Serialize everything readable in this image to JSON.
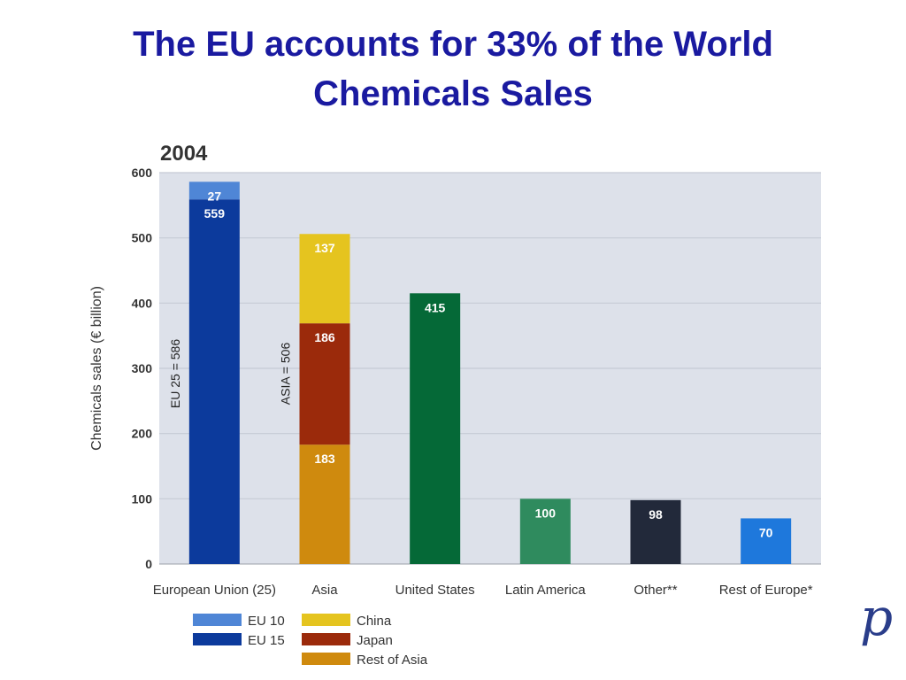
{
  "slide": {
    "title_line1": "The EU accounts for 33% of the World",
    "title_line2": "Chemicals Sales",
    "logo_glyph": "p"
  },
  "colors": {
    "title": "#1a1aa0",
    "plot_bg": "#dde1ea",
    "eu10": "#4f86d6",
    "eu15": "#0c3a9c",
    "china": "#e5c41f",
    "japan": "#9b2a0b",
    "rest_of_asia": "#cf8a0e",
    "united_states": "#056937",
    "latin_america": "#2f8b5e",
    "other": "#22293a",
    "rest_of_europe": "#1e78dc"
  },
  "chart_data": {
    "type": "bar",
    "stacked": true,
    "title": "2004",
    "xlabel": "",
    "ylabel": "Chemicals sales (€ billion)",
    "ylim": [
      0,
      600
    ],
    "yticks": [
      0,
      100,
      200,
      300,
      400,
      500,
      600
    ],
    "grid": true,
    "categories": [
      "European Union (25)",
      "Asia",
      "United States",
      "Latin America",
      "Other**",
      "Rest of Europe*"
    ],
    "series": [
      {
        "name": "EU 15",
        "color_key": "eu15",
        "values": [
          559,
          null,
          null,
          null,
          null,
          null
        ]
      },
      {
        "name": "EU 10",
        "color_key": "eu10",
        "values": [
          27,
          null,
          null,
          null,
          null,
          null
        ]
      },
      {
        "name": "Rest of Asia",
        "color_key": "rest_of_asia",
        "values": [
          null,
          183,
          null,
          null,
          null,
          null
        ]
      },
      {
        "name": "Japan",
        "color_key": "japan",
        "values": [
          null,
          186,
          null,
          null,
          null,
          null
        ]
      },
      {
        "name": "China",
        "color_key": "china",
        "values": [
          null,
          137,
          null,
          null,
          null,
          null
        ]
      },
      {
        "name": "",
        "color_key": "united_states",
        "values": [
          null,
          null,
          415,
          null,
          null,
          null
        ]
      },
      {
        "name": "",
        "color_key": "latin_america",
        "values": [
          null,
          null,
          null,
          100,
          null,
          null
        ]
      },
      {
        "name": "",
        "color_key": "other",
        "values": [
          null,
          null,
          null,
          null,
          98,
          null
        ]
      },
      {
        "name": "",
        "color_key": "rest_of_europe",
        "values": [
          null,
          null,
          null,
          null,
          null,
          70
        ]
      }
    ],
    "annotations": [
      {
        "category": "European Union (25)",
        "text": "EU 25 = 586"
      },
      {
        "category": "Asia",
        "text": "ASIA = 506"
      }
    ],
    "legend": {
      "placement": "bottom-left",
      "columns": [
        [
          {
            "label": "EU 10",
            "color_key": "eu10"
          },
          {
            "label": "EU 15",
            "color_key": "eu15"
          }
        ],
        [
          {
            "label": "China",
            "color_key": "china"
          },
          {
            "label": "Japan",
            "color_key": "japan"
          },
          {
            "label": "Rest of Asia",
            "color_key": "rest_of_asia"
          }
        ]
      ]
    }
  }
}
